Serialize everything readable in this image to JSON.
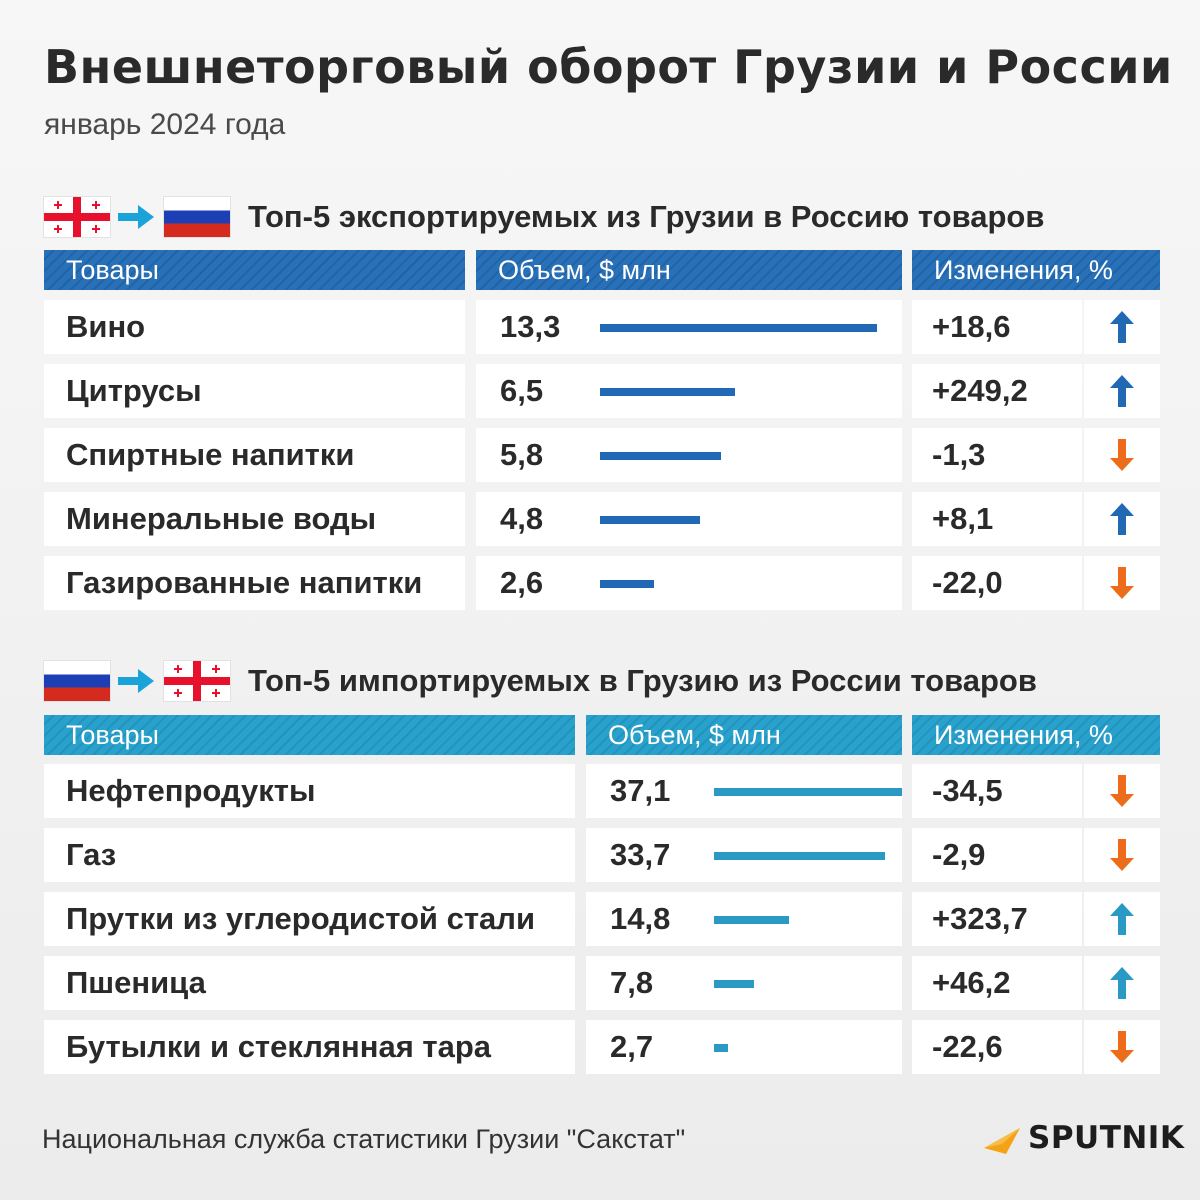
{
  "title": "Внешнеторговый оборот Грузии и России",
  "subtitle": "январь 2024 года",
  "export": {
    "title": "Топ-5 экспортируемых из Грузии в Россию товаров",
    "headers": {
      "goods": "Товары",
      "volume": "Объем, $ млн",
      "change": "Изменения, %"
    },
    "rows": [
      {
        "name": "Вино",
        "volume": "13,3",
        "change": "+18,6",
        "direction": "up"
      },
      {
        "name": "Цитрусы",
        "volume": "6,5",
        "change": "+249,2",
        "direction": "up"
      },
      {
        "name": "Спиртные напитки",
        "volume": "5,8",
        "change": "-1,3",
        "direction": "down"
      },
      {
        "name": "Минеральные воды",
        "volume": "4,8",
        "change": "+8,1",
        "direction": "up"
      },
      {
        "name": "Газированные напитки",
        "volume": "2,6",
        "change": "-22,0",
        "direction": "down"
      }
    ]
  },
  "import": {
    "title": "Топ-5 импортируемых в Грузию из России товаров",
    "headers": {
      "goods": "Товары",
      "volume": "Объем, $ млн",
      "change": "Изменения, %"
    },
    "rows": [
      {
        "name": "Нефтепродукты",
        "volume": "37,1",
        "change": "-34,5",
        "direction": "down"
      },
      {
        "name": "Газ",
        "volume": "33,7",
        "change": "-2,9",
        "direction": "down"
      },
      {
        "name": "Прутки из углеродистой стали",
        "volume": "14,8",
        "change": "+323,7",
        "direction": "up"
      },
      {
        "name": "Пшеница",
        "volume": "7,8",
        "change": "+46,2",
        "direction": "up"
      },
      {
        "name": "Бутылки и стеклянная тара",
        "volume": "2,7",
        "change": "-22,6",
        "direction": "down"
      }
    ]
  },
  "source": "Национальная служба статистики Грузии \"Сакстат\"",
  "logo": "SPUTNIK",
  "colors": {
    "export_bar": "#2168b5",
    "import_bar": "#2a9ac4",
    "up_arrow_export": "#2168b5",
    "up_arrow_import": "#2a9ac4",
    "down_arrow": "#ec6c1c"
  },
  "chart_data": [
    {
      "type": "bar",
      "title": "Топ-5 экспортируемых из Грузии в Россию товаров",
      "categories": [
        "Вино",
        "Цитрусы",
        "Спиртные напитки",
        "Минеральные воды",
        "Газированные напитки"
      ],
      "values": [
        13.3,
        6.5,
        5.8,
        4.8,
        2.6
      ],
      "change_pct": [
        18.6,
        249.2,
        -1.3,
        8.1,
        -22.0
      ],
      "xlabel": "",
      "ylabel": "Объем, $ млн"
    },
    {
      "type": "bar",
      "title": "Топ-5 импортируемых в Грузию из России товаров",
      "categories": [
        "Нефтепродукты",
        "Газ",
        "Прутки из углеродистой стали",
        "Пшеница",
        "Бутылки и стеклянная тара"
      ],
      "values": [
        37.1,
        33.7,
        14.8,
        7.8,
        2.7
      ],
      "change_pct": [
        -34.5,
        -2.9,
        323.7,
        46.2,
        -22.6
      ],
      "xlabel": "",
      "ylabel": "Объем, $ млн"
    }
  ]
}
